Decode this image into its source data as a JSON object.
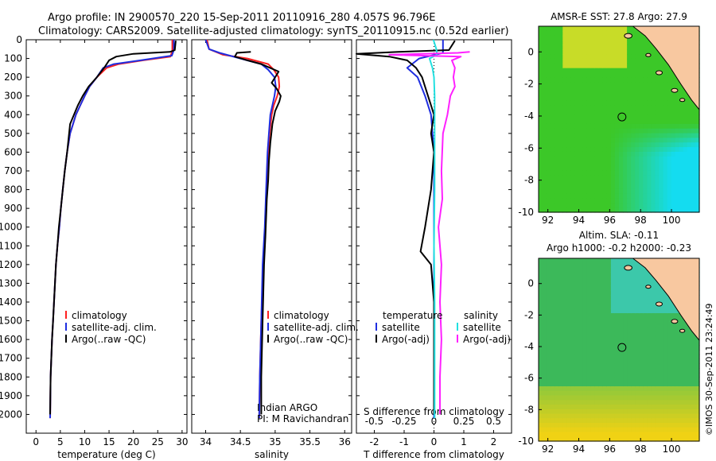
{
  "header": {
    "line1": "Argo profile: IN 2900570_220 15-Sep-2011 20110916_280 4.057S 96.796E",
    "line2": "Climatology: CARS2009. Satellite-adjusted climatology: synTS_20110915.nc (0.52d earlier)"
  },
  "colors": {
    "climatology": "#ff2020",
    "satellite": "#1f2ee0",
    "argo": "#000000",
    "satellite_s": "#22e0e0",
    "argo_s": "#ff20ff"
  },
  "watermark": "©IMOS 30-Sep-2011 23:24:49",
  "chart_data": [
    {
      "type": "line",
      "xlabel": "temperature (deg C)",
      "xlim": [
        -2,
        31
      ],
      "xticks": [
        0,
        5,
        10,
        15,
        20,
        25,
        30
      ],
      "ylim": [
        2100,
        0
      ],
      "yticks": [
        0,
        100,
        200,
        300,
        400,
        500,
        600,
        700,
        800,
        900,
        1000,
        1100,
        1200,
        1300,
        1400,
        1500,
        1600,
        1700,
        1800,
        1900,
        2000
      ],
      "legend": [
        "climatology",
        "satellite-adj. clim.",
        "Argo(..raw -QC)"
      ],
      "series": [
        {
          "name": "climatology",
          "color": "#ff2020",
          "x": [
            28.0,
            28.0,
            27.6,
            22,
            17,
            14.5,
            12.5,
            11,
            10,
            9.1,
            8.2,
            7.6,
            7.0,
            6.4,
            5.9,
            5.5,
            5.1,
            4.8,
            4.4,
            4.1,
            3.7,
            3.5,
            3.3,
            3.0,
            2.9
          ],
          "y": [
            0,
            60,
            90,
            110,
            130,
            150,
            200,
            250,
            300,
            350,
            400,
            450,
            500,
            600,
            700,
            800,
            900,
            1000,
            1100,
            1200,
            1400,
            1500,
            1600,
            1800,
            2020
          ]
        },
        {
          "name": "satellite-adj. clim.",
          "color": "#1f2ee0",
          "x": [
            28.3,
            28.3,
            27.9,
            21.5,
            16,
            13.8,
            12.5,
            11,
            10,
            9.1,
            8.2,
            7.6,
            7.0,
            6.4,
            5.9,
            5.5,
            5.1,
            4.8,
            4.4,
            4.1,
            3.7,
            3.5,
            3.3,
            3.0,
            2.9
          ],
          "y": [
            0,
            55,
            85,
            110,
            130,
            150,
            200,
            250,
            300,
            350,
            400,
            450,
            500,
            600,
            700,
            800,
            900,
            1000,
            1100,
            1200,
            1400,
            1500,
            1600,
            1800,
            2020
          ]
        },
        {
          "name": "Argo(..raw -QC)",
          "color": "#000000",
          "x": [
            28.7,
            28.5,
            27.5,
            20,
            16.5,
            15,
            14,
            12.5,
            10.8,
            9.6,
            8.6,
            7.8,
            7.0,
            6.4,
            5.9,
            5.5,
            5.1,
            4.7,
            4.4,
            4.1,
            3.7,
            3.5,
            3.3,
            3.0,
            2.9
          ],
          "y": [
            5,
            55,
            65,
            75,
            90,
            110,
            150,
            200,
            250,
            300,
            350,
            400,
            450,
            600,
            700,
            800,
            900,
            1000,
            1100,
            1200,
            1400,
            1500,
            1600,
            1800,
            2000
          ]
        }
      ]
    },
    {
      "type": "line",
      "xlabel": "salinity",
      "xlim": [
        33.8,
        36.1
      ],
      "xticks": [
        34,
        34.5,
        35,
        35.5,
        36
      ],
      "ylim": [
        2100,
        0
      ],
      "legend": [
        "climatology",
        "satellite-adj. clim.",
        "Argo(..raw -QC)"
      ],
      "annotations": [
        "Indian ARGO",
        "PI: M Ravichandran"
      ],
      "series": [
        {
          "name": "climatology",
          "color": "#ff2020",
          "x": [
            34.02,
            34.05,
            34.25,
            34.6,
            34.9,
            34.98,
            35.05,
            35.06,
            35.03,
            34.98,
            34.95,
            34.92,
            34.9,
            34.88,
            34.86,
            34.83,
            34.8,
            34.78,
            34.77
          ],
          "y": [
            0,
            50,
            80,
            100,
            130,
            160,
            200,
            250,
            300,
            350,
            400,
            500,
            600,
            800,
            1000,
            1200,
            1500,
            1800,
            2020
          ]
        },
        {
          "name": "satellite-adj. clim.",
          "color": "#1f2ee0",
          "x": [
            34.0,
            34.05,
            34.2,
            34.5,
            34.8,
            34.9,
            34.99,
            35.01,
            34.99,
            34.96,
            34.93,
            34.91,
            34.89,
            34.87,
            34.85,
            34.82,
            34.8,
            34.78,
            34.77
          ],
          "y": [
            0,
            50,
            70,
            100,
            130,
            160,
            200,
            250,
            300,
            350,
            400,
            500,
            600,
            800,
            1000,
            1200,
            1500,
            1800,
            2020
          ]
        },
        {
          "name": "Argo(..raw -QC)",
          "color": "#000000",
          "x": [
            34.65,
            34.45,
            34.42,
            34.6,
            34.8,
            35.05,
            35.0,
            34.95,
            35.02,
            35.08,
            35.06,
            35.0,
            34.96,
            34.93,
            34.91,
            34.9,
            34.88,
            34.87,
            34.86,
            34.84,
            34.82,
            34.8,
            34.8
          ],
          "y": [
            65,
            70,
            90,
            110,
            130,
            170,
            200,
            230,
            260,
            300,
            330,
            380,
            450,
            550,
            650,
            750,
            850,
            950,
            1050,
            1200,
            1500,
            1800,
            2000
          ]
        }
      ]
    },
    {
      "type": "line",
      "xlabel": "T difference from climatology",
      "xlabel2": "S difference from climatology",
      "xlim": [
        -2.6,
        2.6
      ],
      "xticks": [
        -2,
        -1,
        0,
        1,
        2
      ],
      "xticks2": [
        "-0.5",
        "-0.25",
        "0",
        "0.25",
        "0.5"
      ],
      "ylim": [
        2100,
        0
      ],
      "legend_titles": [
        "temperature",
        "salinity"
      ],
      "legend": [
        "satellite",
        "Argo(-adj)",
        "satellite",
        "Argo(-adj)"
      ],
      "series": [
        {
          "name": "temperature satellite",
          "color": "#1f2ee0",
          "x": [
            0.3,
            0.3,
            0.3,
            -0.5,
            -0.9,
            -0.55,
            -0.3,
            -0.1,
            0,
            0,
            0,
            0,
            0
          ],
          "y": [
            0,
            50,
            70,
            100,
            150,
            200,
            300,
            400,
            600,
            1000,
            1400,
            1800,
            2020
          ]
        },
        {
          "name": "temperature Argo(-adj)",
          "color": "#000000",
          "x": [
            0.7,
            0.5,
            -1.2,
            -2.6,
            -1.5,
            -0.9,
            -0.6,
            -0.4,
            -0.2,
            -0.1,
            0,
            -0.1,
            0,
            -0.1,
            -0.3,
            -0.45,
            -0.1,
            0,
            0,
            0
          ],
          "y": [
            5,
            55,
            65,
            75,
            90,
            110,
            150,
            200,
            300,
            350,
            400,
            500,
            600,
            800,
            1000,
            1130,
            1200,
            1400,
            1800,
            2000
          ]
        },
        {
          "name": "salinity satellite",
          "color": "#22e0e0",
          "x": [
            -0.02,
            0.08,
            0.1,
            -0.15,
            -0.05,
            0,
            0.02,
            0.02,
            0.02,
            0,
            0.02,
            0.02,
            0.02
          ],
          "y": [
            0,
            50,
            80,
            100,
            150,
            200,
            300,
            500,
            800,
            1100,
            1400,
            1800,
            2020
          ]
        },
        {
          "name": "salinity Argo(-adj)",
          "color": "#ff20ff",
          "x": [
            1.2,
            0.8,
            -1.5,
            0.9,
            0.6,
            0.7,
            0.65,
            0.7,
            0.55,
            0.45,
            0.3,
            0.25,
            0.28,
            0.15,
            0.25,
            0.2,
            0.25,
            0.2,
            0.2
          ],
          "y": [
            65,
            70,
            80,
            90,
            110,
            150,
            200,
            250,
            300,
            400,
            500,
            700,
            850,
            1000,
            1200,
            1400,
            1600,
            1800,
            2000
          ]
        }
      ]
    },
    {
      "type": "heatmap",
      "title": "AMSR-E SST: 27.8  Argo: 27.9",
      "xticks": [
        92,
        94,
        96,
        98,
        100
      ],
      "yticks": [
        0,
        -2,
        -4,
        -6,
        -8,
        -10
      ]
    },
    {
      "type": "heatmap",
      "title": "Altim. SLA: -0.11",
      "subtitle": "Argo h1000: -0.2 h2000: -0.23",
      "xticks": [
        92,
        94,
        96,
        98,
        100
      ],
      "yticks": [
        0,
        -2,
        -4,
        -6,
        -8,
        -10
      ]
    }
  ]
}
